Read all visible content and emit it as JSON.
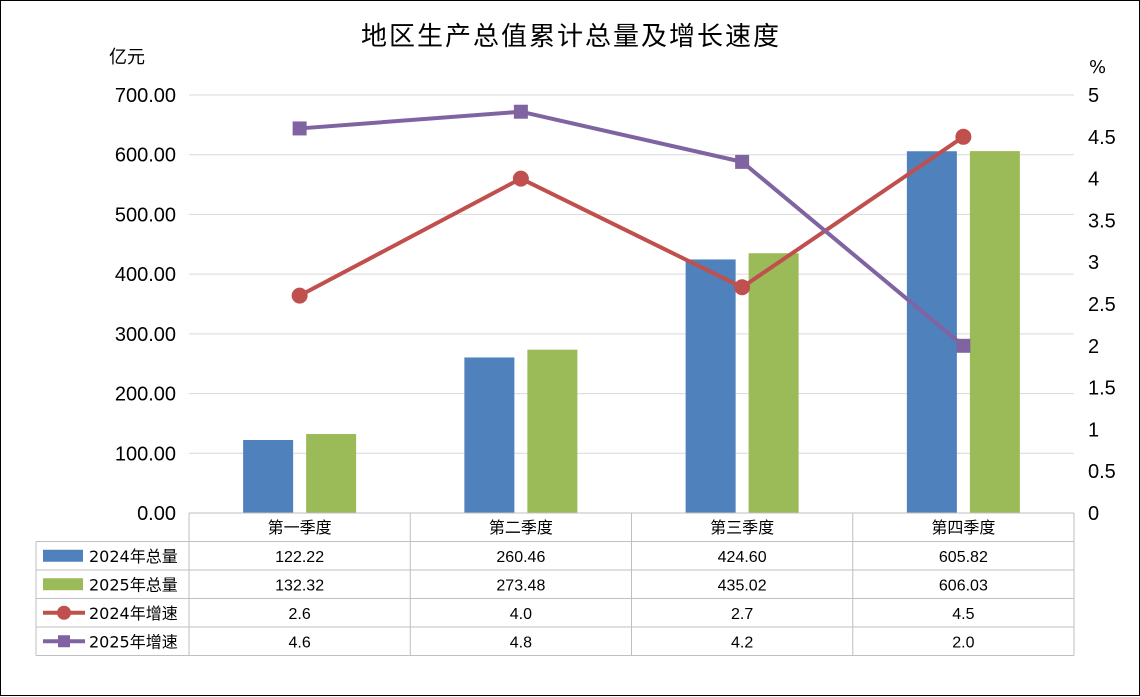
{
  "chart_data": {
    "type": "bar",
    "title": "地区生产总值累计总量及增长速度",
    "ylabel": "亿元",
    "y2label": "%",
    "ylim": [
      0,
      700
    ],
    "y2lim": [
      0,
      5
    ],
    "yticks": [
      "0.00",
      "100.00",
      "200.00",
      "300.00",
      "400.00",
      "500.00",
      "600.00",
      "700.00"
    ],
    "y2ticks": [
      "0",
      "0.5",
      "1",
      "1.5",
      "2",
      "2.5",
      "3",
      "3.5",
      "4",
      "4.5",
      "5"
    ],
    "categories": [
      "第一季度",
      "第二季度",
      "第三季度",
      "第四季度"
    ],
    "grid": true,
    "legend": "data-table",
    "series": [
      {
        "name": "2024年总量",
        "kind": "bar",
        "axis": "left",
        "color": "#4F81BD",
        "values": [
          122.22,
          260.46,
          424.6,
          605.82
        ],
        "labels": [
          "122.22",
          "260.46",
          "424.60",
          "605.82"
        ]
      },
      {
        "name": "2025年总量",
        "kind": "bar",
        "axis": "left",
        "color": "#9BBB59",
        "values": [
          132.32,
          273.48,
          435.02,
          606.03
        ],
        "labels": [
          "132.32",
          "273.48",
          "435.02",
          "606.03"
        ]
      },
      {
        "name": "2024年增速",
        "kind": "line",
        "axis": "right",
        "color": "#C0504D",
        "marker": "circle",
        "values": [
          2.6,
          4.0,
          2.7,
          4.5
        ],
        "labels": [
          "2.6",
          "4.0",
          "2.7",
          "4.5"
        ]
      },
      {
        "name": "2025年增速",
        "kind": "line",
        "axis": "right",
        "color": "#8064A2",
        "marker": "square",
        "values": [
          4.6,
          4.8,
          4.2,
          2.0
        ],
        "labels": [
          "4.6",
          "4.8",
          "4.2",
          "2.0"
        ]
      }
    ]
  }
}
